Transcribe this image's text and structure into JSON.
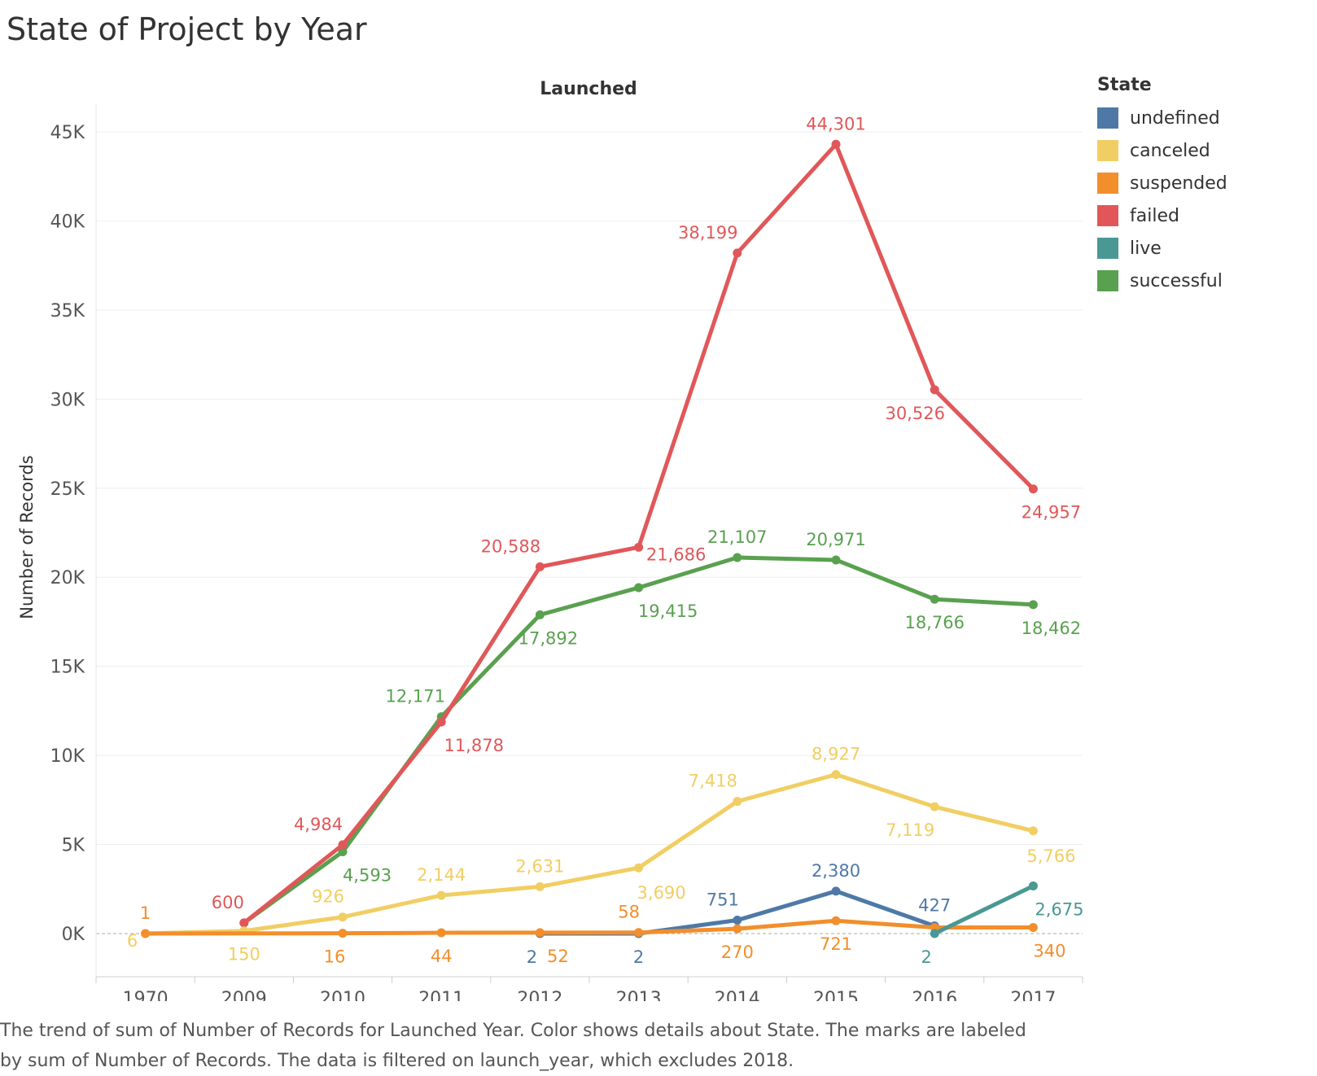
{
  "title": "State of Project by Year",
  "caption_line1": "The trend of sum of Number of Records for Launched Year.  Color shows details about State.  The marks are labeled",
  "caption_line2": "by sum of Number of Records. The data is filtered on launch_year, which excludes 2018.",
  "chart_data": {
    "type": "line",
    "column_header": "Launched",
    "ylabel": "Number of Records",
    "x": [
      "1970",
      "2009",
      "2010",
      "2011",
      "2012",
      "2013",
      "2014",
      "2015",
      "2016",
      "2017"
    ],
    "ylim": [
      0,
      45000
    ],
    "yticks": [
      0,
      5000,
      10000,
      15000,
      20000,
      25000,
      30000,
      35000,
      40000,
      45000
    ],
    "ytick_labels": [
      "0K",
      "5K",
      "10K",
      "15K",
      "20K",
      "25K",
      "30K",
      "35K",
      "40K",
      "45K"
    ],
    "grid": true,
    "legend_title": "State",
    "legend_position": "right",
    "series": [
      {
        "name": "undefined",
        "color": "#4e79a7",
        "values": [
          null,
          null,
          null,
          null,
          2,
          2,
          751,
          2380,
          427,
          null
        ],
        "labels": [
          "",
          "",
          "",
          "",
          "2",
          "2",
          "751",
          "2,380",
          "427",
          ""
        ]
      },
      {
        "name": "canceled",
        "color": "#f1ce63",
        "values": [
          6,
          150,
          926,
          2144,
          2631,
          3690,
          7418,
          8927,
          7119,
          5766
        ],
        "labels": [
          "6",
          "150",
          "926",
          "2,144",
          "2,631",
          "3,690",
          "7,418",
          "8,927",
          "7,119",
          "5,766"
        ]
      },
      {
        "name": "suspended",
        "color": "#f28e2b",
        "values": [
          1,
          null,
          16,
          44,
          52,
          58,
          270,
          721,
          340,
          340
        ],
        "labels": [
          "1",
          "",
          "16",
          "44",
          "52",
          "58",
          "270",
          "721",
          "",
          "340"
        ]
      },
      {
        "name": "failed",
        "color": "#e15759",
        "values": [
          null,
          600,
          4984,
          11878,
          20588,
          21686,
          38199,
          44301,
          30526,
          24957
        ],
        "labels": [
          "",
          "600",
          "4,984",
          "11,878",
          "20,588",
          "21,686",
          "38,199",
          "44,301",
          "30,526",
          "24,957"
        ]
      },
      {
        "name": "live",
        "color": "#499894",
        "values": [
          null,
          null,
          null,
          null,
          null,
          null,
          null,
          null,
          2,
          2675
        ],
        "labels": [
          "",
          "",
          "",
          "",
          "",
          "",
          "",
          "",
          "2",
          "2,675"
        ]
      },
      {
        "name": "successful",
        "color": "#59a14f",
        "values": [
          null,
          600,
          4593,
          12171,
          17892,
          19415,
          21107,
          20971,
          18766,
          18462
        ],
        "labels": [
          "",
          "",
          "4,593",
          "12,171",
          "17,892",
          "19,415",
          "21,107",
          "20,971",
          "18,766",
          "18,462"
        ]
      }
    ]
  }
}
